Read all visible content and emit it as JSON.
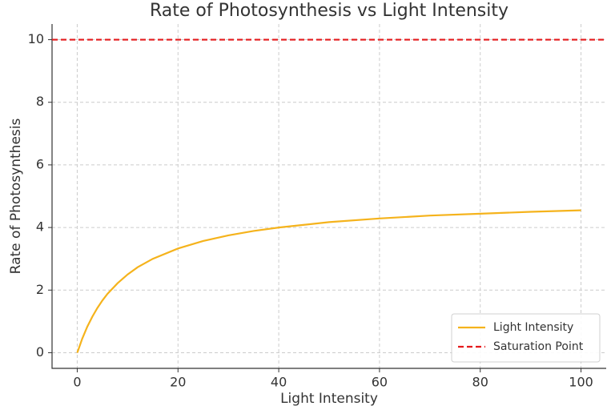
{
  "chart_data": {
    "type": "line",
    "title": "Rate of Photosynthesis vs Light Intensity",
    "xlabel": "Light Intensity",
    "ylabel": "Rate of Photosynthesis",
    "x": [
      0,
      1,
      2,
      3,
      4,
      5,
      6,
      8,
      10,
      12,
      15,
      20,
      25,
      30,
      35,
      40,
      50,
      60,
      70,
      80,
      90,
      100
    ],
    "series": [
      {
        "name": "Light Intensity",
        "color": "#f5b31c",
        "values": [
          0,
          0.45,
          0.83,
          1.15,
          1.43,
          1.67,
          1.88,
          2.22,
          2.5,
          2.73,
          3,
          3.33,
          3.57,
          3.75,
          3.89,
          4,
          4.17,
          4.29,
          4.38,
          4.44,
          4.5,
          4.55
        ]
      }
    ],
    "hlines": [
      {
        "name": "Saturation Point",
        "value": 10,
        "color": "#e41a1c"
      }
    ],
    "xlim": [
      -5,
      105
    ],
    "xticks": [
      0,
      20,
      40,
      60,
      80,
      100
    ],
    "ylim": [
      -0.5,
      10.5
    ],
    "yticks": [
      0,
      2,
      4,
      6,
      8,
      10
    ],
    "grid": true,
    "legend": "lower right"
  }
}
